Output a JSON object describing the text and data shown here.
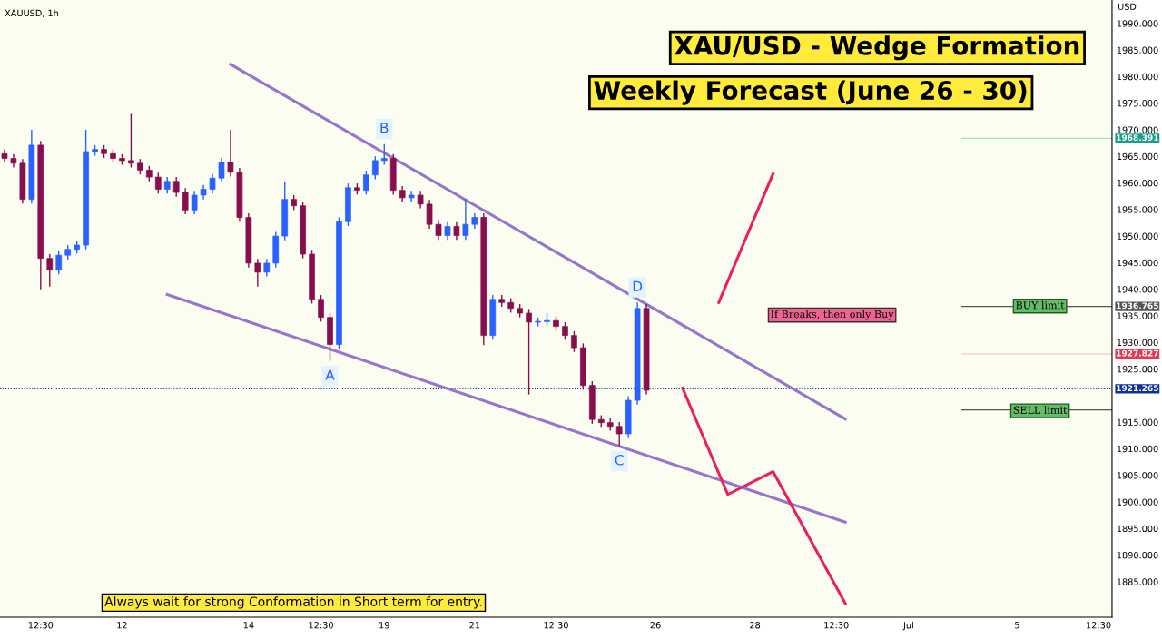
{
  "chart_data": {
    "type": "candlestick",
    "title": "XAU/USD - Wedge Formation",
    "subtitle": "Weekly Forecast (June 26 - 30)",
    "ylabel": "USD",
    "annotations": [
      "XAUUSD, 1h",
      "Always wait for strong Conformation in Short term for entry.",
      "If Breaks, then only Buy",
      "BUY limit",
      "SELL limit",
      {
        "text": "A",
        "y": 1926.5
      },
      {
        "text": "B",
        "y": 1967.3
      },
      {
        "text": "C",
        "y": 1910.5
      },
      {
        "text": "D",
        "y": 1937.5
      }
    ],
    "categories": [
      null,
      null,
      null,
      null,
      "12:30",
      null,
      null,
      null,
      null,
      null,
      null,
      null,
      null,
      "12",
      null,
      null,
      null,
      null,
      null,
      null,
      null,
      null,
      null,
      null,
      null,
      null,
      null,
      "14",
      null,
      null,
      null,
      null,
      null,
      null,
      null,
      "12:30",
      null,
      null,
      null,
      null,
      null,
      null,
      "19",
      null,
      null,
      null,
      null,
      null,
      null,
      null,
      null,
      null,
      "21",
      null,
      null,
      null,
      null,
      null,
      null,
      null,
      null,
      "12:30",
      null,
      null,
      null,
      null,
      null,
      null,
      null,
      null,
      null,
      null,
      "26",
      null,
      null,
      null,
      null,
      null,
      null,
      null,
      null,
      null,
      null,
      "28",
      null,
      null,
      null,
      null,
      null,
      null,
      null,
      null,
      "12:30",
      null,
      null,
      null,
      null,
      null,
      null,
      null,
      "Jul",
      null,
      null,
      null,
      null,
      null,
      null,
      null,
      null,
      null,
      null,
      null,
      "5",
      null,
      null,
      null,
      null,
      null,
      null,
      null,
      null,
      "12:30",
      null
    ],
    "ylim": [
      1878.3,
      1994.4
    ],
    "yticks": [
      {
        "value": 1885,
        "label": "1885.000"
      },
      {
        "value": 1890,
        "label": "1890.000"
      },
      {
        "value": 1895,
        "label": "1895.000"
      },
      {
        "value": 1900,
        "label": "1900.000"
      },
      {
        "value": 1905,
        "label": "1905.000"
      },
      {
        "value": 1910,
        "label": "1910.000"
      },
      {
        "value": 1915,
        "label": "1915.000"
      },
      {
        "value": 1925,
        "label": "1925.000"
      },
      {
        "value": 1930,
        "label": "1930.000"
      },
      {
        "value": 1935,
        "label": "1935.000"
      },
      {
        "value": 1940,
        "label": "1940.000"
      },
      {
        "value": 1945,
        "label": "1945.000"
      },
      {
        "value": 1950,
        "label": "1950.000"
      },
      {
        "value": 1955,
        "label": "1955.000"
      },
      {
        "value": 1960,
        "label": "1960.000"
      },
      {
        "value": 1965,
        "label": "1965.000"
      },
      {
        "value": 1970,
        "label": "1970.000"
      },
      {
        "value": 1975,
        "label": "1975.000"
      },
      {
        "value": 1980,
        "label": "1980.000"
      },
      {
        "value": 1985,
        "label": "1985.000"
      },
      {
        "value": 1990,
        "label": "1990.000"
      }
    ],
    "ref_lines": [
      {
        "axis": "y",
        "value": 1936.765,
        "label": "1936.765",
        "color": "#555555",
        "line_style": "solid"
      },
      {
        "axis": "y",
        "value": 1917.3,
        "color": "#555555",
        "line_style": "solid"
      },
      {
        "axis": "y",
        "value": 1921.265,
        "label": "1921.265",
        "color": "#0d2fa0",
        "line_style": "dotted"
      },
      {
        "axis": "y",
        "value": 1927.827,
        "label": "1927.827",
        "color": "#e53950",
        "line_style": "solid"
      },
      {
        "axis": "y",
        "value": 1968.391,
        "label": "1968.391",
        "color": "#169f8a",
        "line_style": "solid"
      }
    ],
    "series": [
      {
        "ohlc": [
          [
            1965.5,
            1966.3,
            1963.8,
            1964.6
          ],
          [
            1964.6,
            1965.4,
            1962.9,
            1963.7
          ],
          [
            1963.7,
            1964.5,
            1956.1,
            1956.9
          ],
          [
            1956.9,
            1970.0,
            1956.1,
            1967.1
          ],
          [
            1967.1,
            1967.9,
            1940.0,
            1945.8
          ],
          [
            1945.8,
            1946.6,
            1940.5,
            1943.6
          ],
          [
            1943.6,
            1947.2,
            1942.8,
            1946.4
          ],
          [
            1946.4,
            1948.3,
            1945.6,
            1947.5
          ],
          [
            1947.5,
            1949.1,
            1946.7,
            1948.3
          ],
          [
            1948.3,
            1970.0,
            1947.5,
            1965.9
          ],
          [
            1965.9,
            1967.1,
            1965.1,
            1966.3
          ],
          [
            1966.3,
            1967.1,
            1964.7,
            1965.5
          ],
          [
            1965.5,
            1966.3,
            1963.8,
            1964.6
          ],
          [
            1964.6,
            1965.4,
            1963.4,
            1964.2
          ],
          [
            1964.2,
            1973.0,
            1962.9,
            1963.7
          ],
          [
            1963.7,
            1964.5,
            1961.6,
            1962.4
          ],
          [
            1962.4,
            1963.2,
            1960.3,
            1961.1
          ],
          [
            1961.1,
            1961.9,
            1958.0,
            1958.8
          ],
          [
            1958.8,
            1961.1,
            1958.0,
            1960.3
          ],
          [
            1960.3,
            1961.1,
            1957.4,
            1958.2
          ],
          [
            1958.2,
            1959.0,
            1954.1,
            1954.9
          ],
          [
            1954.9,
            1958.5,
            1954.1,
            1957.7
          ],
          [
            1957.7,
            1959.6,
            1956.9,
            1958.8
          ],
          [
            1958.8,
            1961.7,
            1958.0,
            1960.9
          ],
          [
            1960.9,
            1964.7,
            1960.1,
            1963.9
          ],
          [
            1963.9,
            1970.0,
            1961.2,
            1962.0
          ],
          [
            1962.0,
            1962.8,
            1952.7,
            1953.5
          ],
          [
            1953.5,
            1954.3,
            1944.1,
            1944.9
          ],
          [
            1944.9,
            1945.7,
            1940.5,
            1943.2
          ],
          [
            1943.2,
            1945.7,
            1942.4,
            1944.9
          ],
          [
            1944.9,
            1950.8,
            1944.1,
            1950.0
          ],
          [
            1950.0,
            1960.3,
            1949.2,
            1956.9
          ],
          [
            1956.9,
            1957.7,
            1954.9,
            1955.7
          ],
          [
            1955.7,
            1956.5,
            1945.8,
            1946.6
          ],
          [
            1946.6,
            1947.4,
            1937.3,
            1938.1
          ],
          [
            1938.1,
            1938.9,
            1933.9,
            1934.7
          ],
          [
            1934.7,
            1935.5,
            1926.5,
            1929.6
          ],
          [
            1929.6,
            1953.5,
            1928.8,
            1952.7
          ],
          [
            1952.7,
            1959.9,
            1951.9,
            1959.1
          ],
          [
            1959.1,
            1959.9,
            1957.8,
            1958.6
          ],
          [
            1958.6,
            1962.3,
            1957.8,
            1961.5
          ],
          [
            1961.5,
            1965.0,
            1960.7,
            1964.2
          ],
          [
            1964.2,
            1967.3,
            1963.4,
            1964.6
          ],
          [
            1964.6,
            1965.4,
            1957.8,
            1958.6
          ],
          [
            1958.6,
            1959.4,
            1956.4,
            1957.2
          ],
          [
            1957.2,
            1958.5,
            1956.4,
            1957.7
          ],
          [
            1957.7,
            1958.5,
            1955.2,
            1956.0
          ],
          [
            1956.0,
            1956.8,
            1951.4,
            1952.2
          ],
          [
            1952.2,
            1953.0,
            1949.3,
            1950.1
          ],
          [
            1950.1,
            1952.6,
            1949.3,
            1951.8
          ],
          [
            1951.8,
            1952.6,
            1949.3,
            1950.1
          ],
          [
            1950.1,
            1957.0,
            1949.3,
            1952.2
          ],
          [
            1952.2,
            1954.3,
            1951.4,
            1953.5
          ],
          [
            1953.5,
            1954.3,
            1929.5,
            1931.3
          ],
          [
            1931.3,
            1938.9,
            1930.5,
            1938.1
          ],
          [
            1938.1,
            1938.9,
            1936.7,
            1937.5
          ],
          [
            1937.5,
            1938.3,
            1935.6,
            1936.4
          ],
          [
            1936.4,
            1937.2,
            1934.7,
            1935.5
          ],
          [
            1935.5,
            1936.3,
            1920.2,
            1933.8
          ],
          [
            1933.8,
            1934.7,
            1933.0,
            1933.9
          ],
          [
            1933.9,
            1935.5,
            1933.1,
            1934.1
          ],
          [
            1934.1,
            1934.9,
            1932.2,
            1933.0
          ],
          [
            1933.0,
            1933.8,
            1930.5,
            1931.3
          ],
          [
            1931.3,
            1932.1,
            1928.2,
            1929.0
          ],
          [
            1929.0,
            1929.8,
            1921.1,
            1921.9
          ],
          [
            1921.9,
            1922.7,
            1914.7,
            1915.5
          ],
          [
            1915.5,
            1916.3,
            1914.1,
            1914.9
          ],
          [
            1914.9,
            1915.7,
            1913.4,
            1914.2
          ],
          [
            1914.2,
            1915.0,
            1910.5,
            1912.8
          ],
          [
            1912.8,
            1919.9,
            1912.0,
            1919.1
          ],
          [
            1919.1,
            1937.5,
            1918.3,
            1936.4
          ],
          [
            1936.4,
            1937.2,
            1920.2,
            1921.0
          ],
          null,
          null,
          null,
          null,
          null,
          null,
          null,
          null,
          null,
          null,
          null,
          null,
          null,
          null,
          null,
          null,
          null,
          null,
          null,
          null,
          null,
          null,
          null,
          null,
          null,
          null,
          null,
          null,
          null,
          null,
          null,
          null,
          null,
          null,
          null,
          null,
          null,
          null,
          null,
          null,
          null,
          null,
          null,
          null,
          null,
          null,
          null,
          null,
          null,
          null,
          null
        ],
        "colors": [
          "#880e4f",
          "#880e4f",
          "#880e4f",
          "#2962ff",
          "#880e4f",
          "#880e4f",
          "#2962ff",
          "#2962ff",
          "#2962ff",
          "#2962ff",
          "#2962ff",
          "#880e4f",
          "#880e4f",
          "#880e4f",
          "#880e4f",
          "#880e4f",
          "#880e4f",
          "#880e4f",
          "#2962ff",
          "#880e4f",
          "#880e4f",
          "#2962ff",
          "#2962ff",
          "#2962ff",
          "#2962ff",
          "#880e4f",
          "#880e4f",
          "#880e4f",
          "#880e4f",
          "#2962ff",
          "#2962ff",
          "#2962ff",
          "#880e4f",
          "#880e4f",
          "#880e4f",
          "#880e4f",
          "#880e4f",
          "#2962ff",
          "#2962ff",
          "#880e4f",
          "#2962ff",
          "#2962ff",
          "#2962ff",
          "#880e4f",
          "#880e4f",
          "#2962ff",
          "#880e4f",
          "#880e4f",
          "#880e4f",
          "#2962ff",
          "#880e4f",
          "#2962ff",
          "#2962ff",
          "#880e4f",
          "#2962ff",
          "#880e4f",
          "#880e4f",
          "#880e4f",
          "#880e4f",
          "#2962ff",
          "#2962ff",
          "#880e4f",
          "#880e4f",
          "#880e4f",
          "#880e4f",
          "#880e4f",
          "#880e4f",
          "#880e4f",
          "#880e4f",
          "#2962ff",
          "#2962ff",
          "#880e4f",
          null,
          null,
          null,
          null,
          null,
          null,
          null,
          null,
          null,
          null,
          null,
          null,
          null,
          null,
          null,
          null,
          null,
          null,
          null,
          null,
          null,
          null,
          null,
          null,
          null,
          null,
          null,
          null,
          null,
          null,
          null,
          null,
          null,
          null,
          null,
          null,
          null,
          null,
          null,
          null,
          null,
          null,
          null,
          null,
          null,
          null,
          null,
          null,
          null,
          null,
          null
        ]
      },
      {
        "type": "line",
        "color": "#9575cd",
        "values": [
          null,
          null,
          null,
          null,
          null,
          null,
          null,
          null,
          null,
          null,
          null,
          null,
          null,
          null,
          null,
          null,
          null,
          null,
          null,
          null,
          null,
          null,
          null,
          null,
          null,
          1982.3,
          null,
          null,
          null,
          null,
          null,
          null,
          null,
          null,
          null,
          null,
          null,
          null,
          null,
          null,
          null,
          null,
          null,
          null,
          null,
          null,
          null,
          null,
          null,
          null,
          null,
          null,
          null,
          null,
          null,
          null,
          null,
          null,
          null,
          null,
          null,
          null,
          null,
          null,
          null,
          null,
          null,
          null,
          null,
          null,
          null,
          null,
          null,
          null,
          null,
          null,
          null,
          null,
          null,
          null,
          null,
          null,
          null,
          null,
          null,
          null,
          null,
          null,
          null,
          null,
          null,
          null,
          null,
          1915.6,
          null,
          null,
          null,
          null,
          null,
          null,
          null,
          null,
          null,
          null,
          null,
          null,
          null,
          null,
          null,
          null,
          null,
          null,
          null,
          null,
          null,
          null,
          null,
          null,
          null,
          null,
          null,
          null,
          null
        ]
      },
      {
        "type": "line",
        "color": "#9575cd",
        "values": [
          null,
          null,
          null,
          null,
          null,
          null,
          null,
          null,
          null,
          null,
          null,
          null,
          null,
          null,
          null,
          null,
          null,
          null,
          1939.0,
          null,
          null,
          null,
          null,
          null,
          null,
          null,
          null,
          null,
          null,
          null,
          null,
          null,
          null,
          null,
          null,
          null,
          null,
          null,
          null,
          null,
          null,
          null,
          null,
          null,
          null,
          null,
          null,
          null,
          null,
          null,
          null,
          null,
          null,
          null,
          null,
          null,
          null,
          null,
          null,
          null,
          null,
          null,
          null,
          null,
          null,
          null,
          null,
          null,
          null,
          null,
          null,
          null,
          null,
          null,
          null,
          null,
          null,
          null,
          null,
          null,
          null,
          null,
          null,
          null,
          null,
          null,
          null,
          null,
          null,
          null,
          null,
          null,
          null,
          1896.2,
          null,
          null,
          null,
          null,
          null,
          null,
          null,
          null,
          null,
          null,
          null,
          null,
          null,
          null,
          null,
          null,
          null,
          null,
          null,
          null,
          null,
          null,
          null,
          null,
          null,
          null,
          null,
          null,
          null
        ]
      },
      {
        "type": "line",
        "color": "#e91e63",
        "values": [
          null,
          null,
          null,
          null,
          null,
          null,
          null,
          null,
          null,
          null,
          null,
          null,
          null,
          null,
          null,
          null,
          null,
          null,
          null,
          null,
          null,
          null,
          null,
          null,
          null,
          null,
          null,
          null,
          null,
          null,
          null,
          null,
          null,
          null,
          null,
          null,
          null,
          null,
          null,
          null,
          null,
          null,
          null,
          null,
          null,
          null,
          null,
          null,
          null,
          null,
          null,
          null,
          null,
          null,
          null,
          null,
          null,
          null,
          null,
          null,
          null,
          null,
          null,
          null,
          null,
          null,
          null,
          null,
          null,
          null,
          null,
          null,
          null,
          null,
          null,
          null,
          null,
          null,
          null,
          1937.5,
          null,
          null,
          null,
          null,
          null,
          1961.7,
          null,
          null,
          null,
          null,
          null,
          null,
          null,
          null,
          null,
          null,
          null,
          null,
          null,
          null,
          null,
          null,
          null,
          null,
          null,
          null,
          null,
          null,
          null,
          null,
          null,
          null,
          null,
          null,
          null,
          null,
          null,
          null,
          null,
          null,
          null,
          null,
          null
        ]
      },
      {
        "type": "line",
        "color": "#e91e63",
        "values": [
          null,
          null,
          null,
          null,
          null,
          null,
          null,
          null,
          null,
          null,
          null,
          null,
          null,
          null,
          null,
          null,
          null,
          null,
          null,
          null,
          null,
          null,
          null,
          null,
          null,
          null,
          null,
          null,
          null,
          null,
          null,
          null,
          null,
          null,
          null,
          null,
          null,
          null,
          null,
          null,
          null,
          null,
          null,
          null,
          null,
          null,
          null,
          null,
          null,
          null,
          null,
          null,
          null,
          null,
          null,
          null,
          null,
          null,
          null,
          null,
          null,
          null,
          null,
          null,
          null,
          null,
          null,
          null,
          null,
          null,
          null,
          null,
          null,
          null,
          null,
          1921.4,
          null,
          null,
          null,
          null,
          1901.4,
          null,
          null,
          null,
          null,
          1905.7,
          null,
          null,
          null,
          null,
          null,
          null,
          null,
          1880.9,
          null,
          null,
          null,
          null,
          null,
          null,
          null,
          null,
          null,
          null,
          null,
          null,
          null,
          null,
          null,
          null,
          null,
          null,
          null,
          null,
          null,
          null,
          null,
          null,
          null,
          null,
          null,
          null,
          null
        ]
      }
    ],
    "grid": false,
    "legend": false
  }
}
